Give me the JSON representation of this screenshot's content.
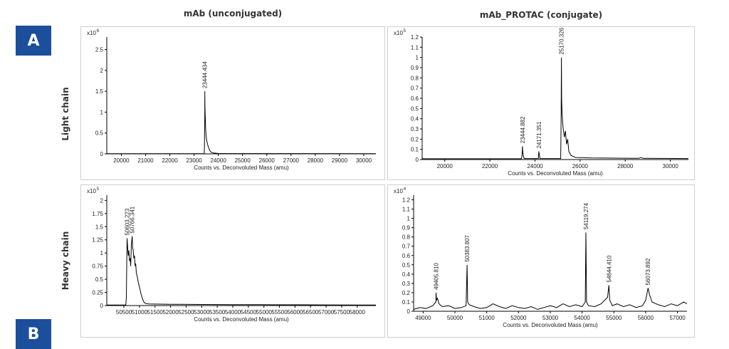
{
  "badges": {
    "a": "A",
    "b": "B"
  },
  "column_titles": {
    "left": "mAb (unconjugated)",
    "right": "mAb_PROTAC (conjugate)"
  },
  "row_labels": {
    "top": "Light chain",
    "bottom": "Heavy chain"
  },
  "colors": {
    "badge": "#1b4f9c",
    "trace": "#000000",
    "axis": "#000000",
    "panel_border": "#cfcfcf"
  },
  "chart_data": [
    {
      "id": "lc-unconj",
      "type": "line",
      "xlabel": "Counts vs. Deconvoluted Mass (amu)",
      "scale_label": "x10",
      "scale_exp": "6",
      "xlim": [
        19400,
        30500
      ],
      "ylim": [
        0,
        2.8
      ],
      "xticks": [
        20000,
        21000,
        22000,
        23000,
        24000,
        25000,
        26000,
        27000,
        28000,
        29000,
        30000
      ],
      "yticks": [
        0,
        0.5,
        1,
        1.5,
        2,
        2.5
      ],
      "series": [
        {
          "x": [
            19400,
            23400,
            23420,
            23430,
            23440,
            23444,
            23450,
            23460,
            23480,
            23500,
            23530,
            23560,
            23600,
            23650,
            23700,
            23800,
            24000,
            30500
          ],
          "y": [
            0.003,
            0.003,
            0.01,
            0.15,
            0.8,
            1.5,
            1.1,
            0.9,
            0.6,
            0.4,
            0.3,
            0.22,
            0.15,
            0.08,
            0.04,
            0.02,
            0.008,
            0.003
          ]
        }
      ],
      "peak_labels": [
        {
          "text": "23444.434",
          "x": 23444,
          "y": 1.5
        }
      ]
    },
    {
      "id": "lc-conj",
      "type": "line",
      "xlabel": "Counts vs. Deconvoluted Mass (amu)",
      "scale_label": "x10",
      "scale_exp": "5",
      "xlim": [
        19000,
        30800
      ],
      "ylim": [
        0,
        1.2
      ],
      "xticks": [
        20000,
        22000,
        24000,
        26000,
        28000,
        30000
      ],
      "yticks": [
        0,
        0.1,
        0.2,
        0.3,
        0.4,
        0.5,
        0.6,
        0.7,
        0.8,
        0.9,
        1,
        1.1,
        1.2
      ],
      "series": [
        {
          "x": [
            19000,
            23400,
            23430,
            23444,
            23460,
            23490,
            23520,
            24150,
            24170,
            24190,
            24220,
            25140,
            25160,
            25170,
            25180,
            25200,
            25240,
            25300,
            25350,
            25400,
            25450,
            25500,
            25600,
            25800,
            26500,
            28600,
            28700,
            28800,
            30800
          ],
          "y": [
            0.008,
            0.008,
            0.05,
            0.13,
            0.07,
            0.03,
            0.01,
            0.01,
            0.08,
            0.05,
            0.01,
            0.01,
            0.4,
            1.0,
            0.6,
            0.45,
            0.32,
            0.22,
            0.28,
            0.15,
            0.2,
            0.08,
            0.04,
            0.02,
            0.015,
            0.012,
            0.02,
            0.012,
            0.01
          ]
        }
      ],
      "peak_labels": [
        {
          "text": "23444.882",
          "x": 23444,
          "y": 0.13
        },
        {
          "text": "24171.351",
          "x": 24171,
          "y": 0.08
        },
        {
          "text": "25170.326",
          "x": 25170,
          "y": 1.0
        }
      ]
    },
    {
      "id": "hc-unconj",
      "type": "line",
      "xlabel": "Counts vs. Deconvoluted Mass (amu)",
      "scale_label": "x10",
      "scale_exp": "5",
      "xlim": [
        49950,
        58600
      ],
      "ylim": [
        0,
        2.1
      ],
      "xticks": [
        50500,
        51000,
        51500,
        52000,
        52500,
        53000,
        53500,
        54000,
        54500,
        55000,
        55500,
        56000,
        56500,
        57000,
        57500,
        58000
      ],
      "yticks": [
        0,
        0.25,
        0.5,
        0.75,
        1,
        1.25,
        1.5,
        1.75,
        2
      ],
      "series": [
        {
          "x": [
            49950,
            50560,
            50580,
            50590,
            50603,
            50620,
            50640,
            50660,
            50680,
            50700,
            50720,
            50740,
            50766,
            50780,
            50800,
            50820,
            50840,
            50860,
            50880,
            50900,
            50930,
            50960,
            51000,
            51050,
            51100,
            51150,
            51200,
            51300,
            52000,
            53000,
            54000,
            55000,
            56000,
            57000,
            58600
          ],
          "y": [
            0.01,
            0.01,
            0.15,
            0.8,
            1.28,
            1.1,
            0.95,
            1.05,
            0.85,
            0.9,
            0.75,
            1.15,
            1.32,
            1.1,
            1.05,
            0.9,
            0.95,
            0.75,
            0.8,
            0.62,
            0.55,
            0.45,
            0.35,
            0.22,
            0.12,
            0.06,
            0.04,
            0.03,
            0.025,
            0.02,
            0.018,
            0.016,
            0.015,
            0.012,
            0.01
          ]
        }
      ],
      "peak_labels": [
        {
          "text": "50603.223",
          "x": 50603,
          "y": 1.28
        },
        {
          "text": "50766.341",
          "x": 50766,
          "y": 1.32
        }
      ]
    },
    {
      "id": "hc-conj",
      "type": "line",
      "xlabel": "Counts vs. Deconvoluted Mass (amu)",
      "scale_label": "x10",
      "scale_exp": "4",
      "xlim": [
        48700,
        57300
      ],
      "ylim": [
        0,
        1.25
      ],
      "xticks": [
        49000,
        50000,
        51000,
        52000,
        53000,
        54000,
        55000,
        56000,
        57000
      ],
      "yticks": [
        0,
        0.1,
        0.2,
        0.3,
        0.4,
        0.5,
        0.6,
        0.7,
        0.8,
        0.9,
        1,
        1.1,
        1.2
      ],
      "series": [
        {
          "x": [
            48700,
            48900,
            49100,
            49300,
            49400,
            49406,
            49420,
            49450,
            49500,
            49600,
            49800,
            50000,
            50200,
            50350,
            50383,
            50400,
            50450,
            50600,
            50800,
            51000,
            51200,
            51400,
            51600,
            51800,
            52000,
            52200,
            52400,
            52600,
            52800,
            53000,
            53200,
            53400,
            53600,
            53800,
            54000,
            54100,
            54119,
            54140,
            54200,
            54400,
            54600,
            54800,
            54844,
            54870,
            54950,
            55100,
            55300,
            55500,
            55700,
            55900,
            56000,
            56074,
            56120,
            56200,
            56400,
            56600,
            56800,
            57000,
            57200,
            57300
          ],
          "y": [
            0.02,
            0.04,
            0.03,
            0.06,
            0.1,
            0.2,
            0.12,
            0.14,
            0.08,
            0.05,
            0.06,
            0.03,
            0.04,
            0.06,
            0.5,
            0.1,
            0.07,
            0.05,
            0.03,
            0.04,
            0.08,
            0.05,
            0.03,
            0.06,
            0.04,
            0.03,
            0.05,
            0.02,
            0.04,
            0.06,
            0.04,
            0.08,
            0.05,
            0.07,
            0.05,
            0.1,
            0.85,
            0.1,
            0.06,
            0.05,
            0.08,
            0.15,
            0.28,
            0.12,
            0.06,
            0.08,
            0.05,
            0.07,
            0.04,
            0.06,
            0.12,
            0.25,
            0.18,
            0.1,
            0.07,
            0.05,
            0.08,
            0.06,
            0.1,
            0.08
          ]
        }
      ],
      "peak_labels": [
        {
          "text": "49405.810",
          "x": 49406,
          "y": 0.2
        },
        {
          "text": "50383.807",
          "x": 50383,
          "y": 0.5
        },
        {
          "text": "54119.274",
          "x": 54119,
          "y": 0.85
        },
        {
          "text": "54844.410",
          "x": 54844,
          "y": 0.28
        },
        {
          "text": "56073.892",
          "x": 56074,
          "y": 0.25
        }
      ]
    }
  ]
}
